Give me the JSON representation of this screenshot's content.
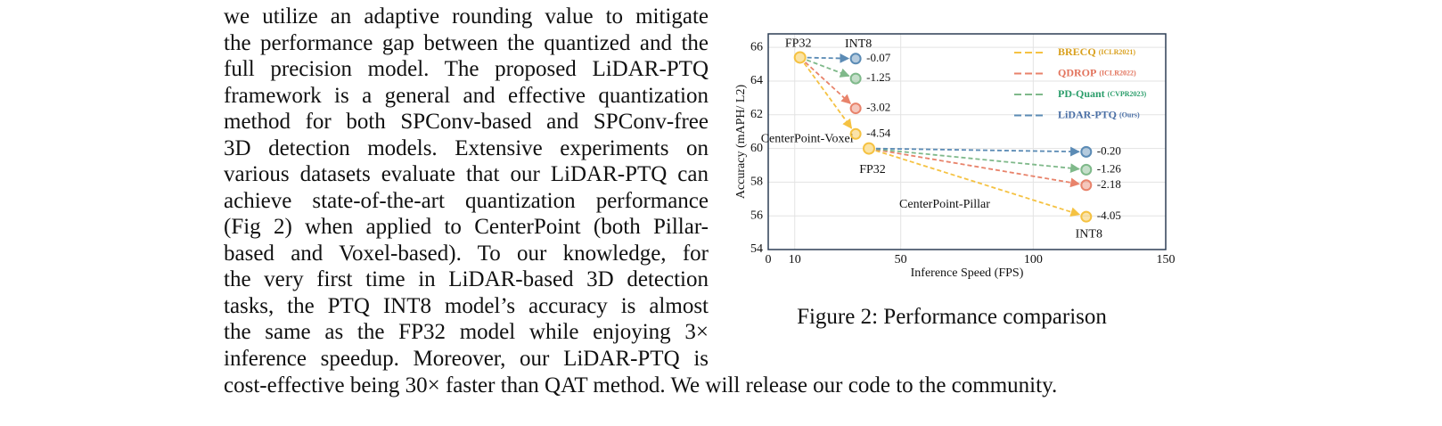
{
  "paragraph": {
    "lines": [
      "we utilize an adaptive rounding value to mitigate",
      "the performance gap between the quantized and the",
      "full precision model. The proposed LiDAR-PTQ",
      "framework is a general and effective quantization",
      "method for both SPConv-based and SPConv-free",
      "3D detection models. Extensive experiments on",
      "various datasets evaluate that our LiDAR-PTQ can",
      "achieve state-of-the-art quantization performance",
      "(Fig 2) when applied to CenterPoint (both Pillar-",
      "based and Voxel-based). To our knowledge, for",
      "the very first time in LiDAR-based 3D detection",
      "tasks, the PTQ INT8 model’s accuracy is almost",
      "the same as the FP32 model while enjoying 3×",
      "inference speedup. Moreover, our LiDAR-PTQ is"
    ],
    "last_line": "cost-effective being 30× faster than QAT method. We will release our code to the community."
  },
  "caption": "Figure 2: Performance comparison",
  "chart_data": {
    "type": "scatter",
    "x_label": "Inference Speed (FPS)",
    "y_label": "Accuracy  (mAPH/ L2)",
    "xlim": [
      0,
      150
    ],
    "xticks": [
      0,
      10,
      50,
      100,
      150
    ],
    "ylim": [
      54,
      66.8
    ],
    "yticks": [
      54,
      56,
      58,
      60,
      62,
      64,
      66
    ],
    "grid": true,
    "legend": "upper right",
    "baselines": [
      {
        "name": "CenterPoint-Voxel",
        "label": "FP32",
        "int8_label": "INT8",
        "x": 12,
        "value": 65.4,
        "color": "#f5c242"
      },
      {
        "name": "CenterPoint-Pillar",
        "label": "FP32",
        "int8_label": "INT8",
        "x": 38,
        "value": 60.0,
        "color": "#f5c242"
      }
    ],
    "series": [
      {
        "name": "BRECQ",
        "venue": "(ICLR2021)",
        "color": "#f5c242",
        "text_color": "#d9a01e",
        "x": [
          33,
          120
        ],
        "values": [
          60.86,
          55.95
        ],
        "deltas": [
          "-4.54",
          "-4.05"
        ]
      },
      {
        "name": "QDROP",
        "venue": "(ICLR2022)",
        "color": "#e8836b",
        "text_color": "#e2735c",
        "x": [
          33,
          120
        ],
        "values": [
          62.38,
          57.82
        ],
        "deltas": [
          "-3.02",
          "-2.18"
        ]
      },
      {
        "name": "PD-Quant",
        "venue": "(CVPR2023)",
        "color": "#7fb98a",
        "text_color": "#2a9d6a",
        "x": [
          33,
          120
        ],
        "values": [
          64.15,
          58.74
        ],
        "deltas": [
          "-1.25",
          "-1.26"
        ]
      },
      {
        "name": "LiDAR-PTQ",
        "venue": "(Ours)",
        "color": "#5b8bb5",
        "text_color": "#4a6fa5",
        "x": [
          33,
          120
        ],
        "values": [
          65.33,
          59.8
        ],
        "deltas": [
          "-0.07",
          "-0.20"
        ]
      }
    ]
  }
}
